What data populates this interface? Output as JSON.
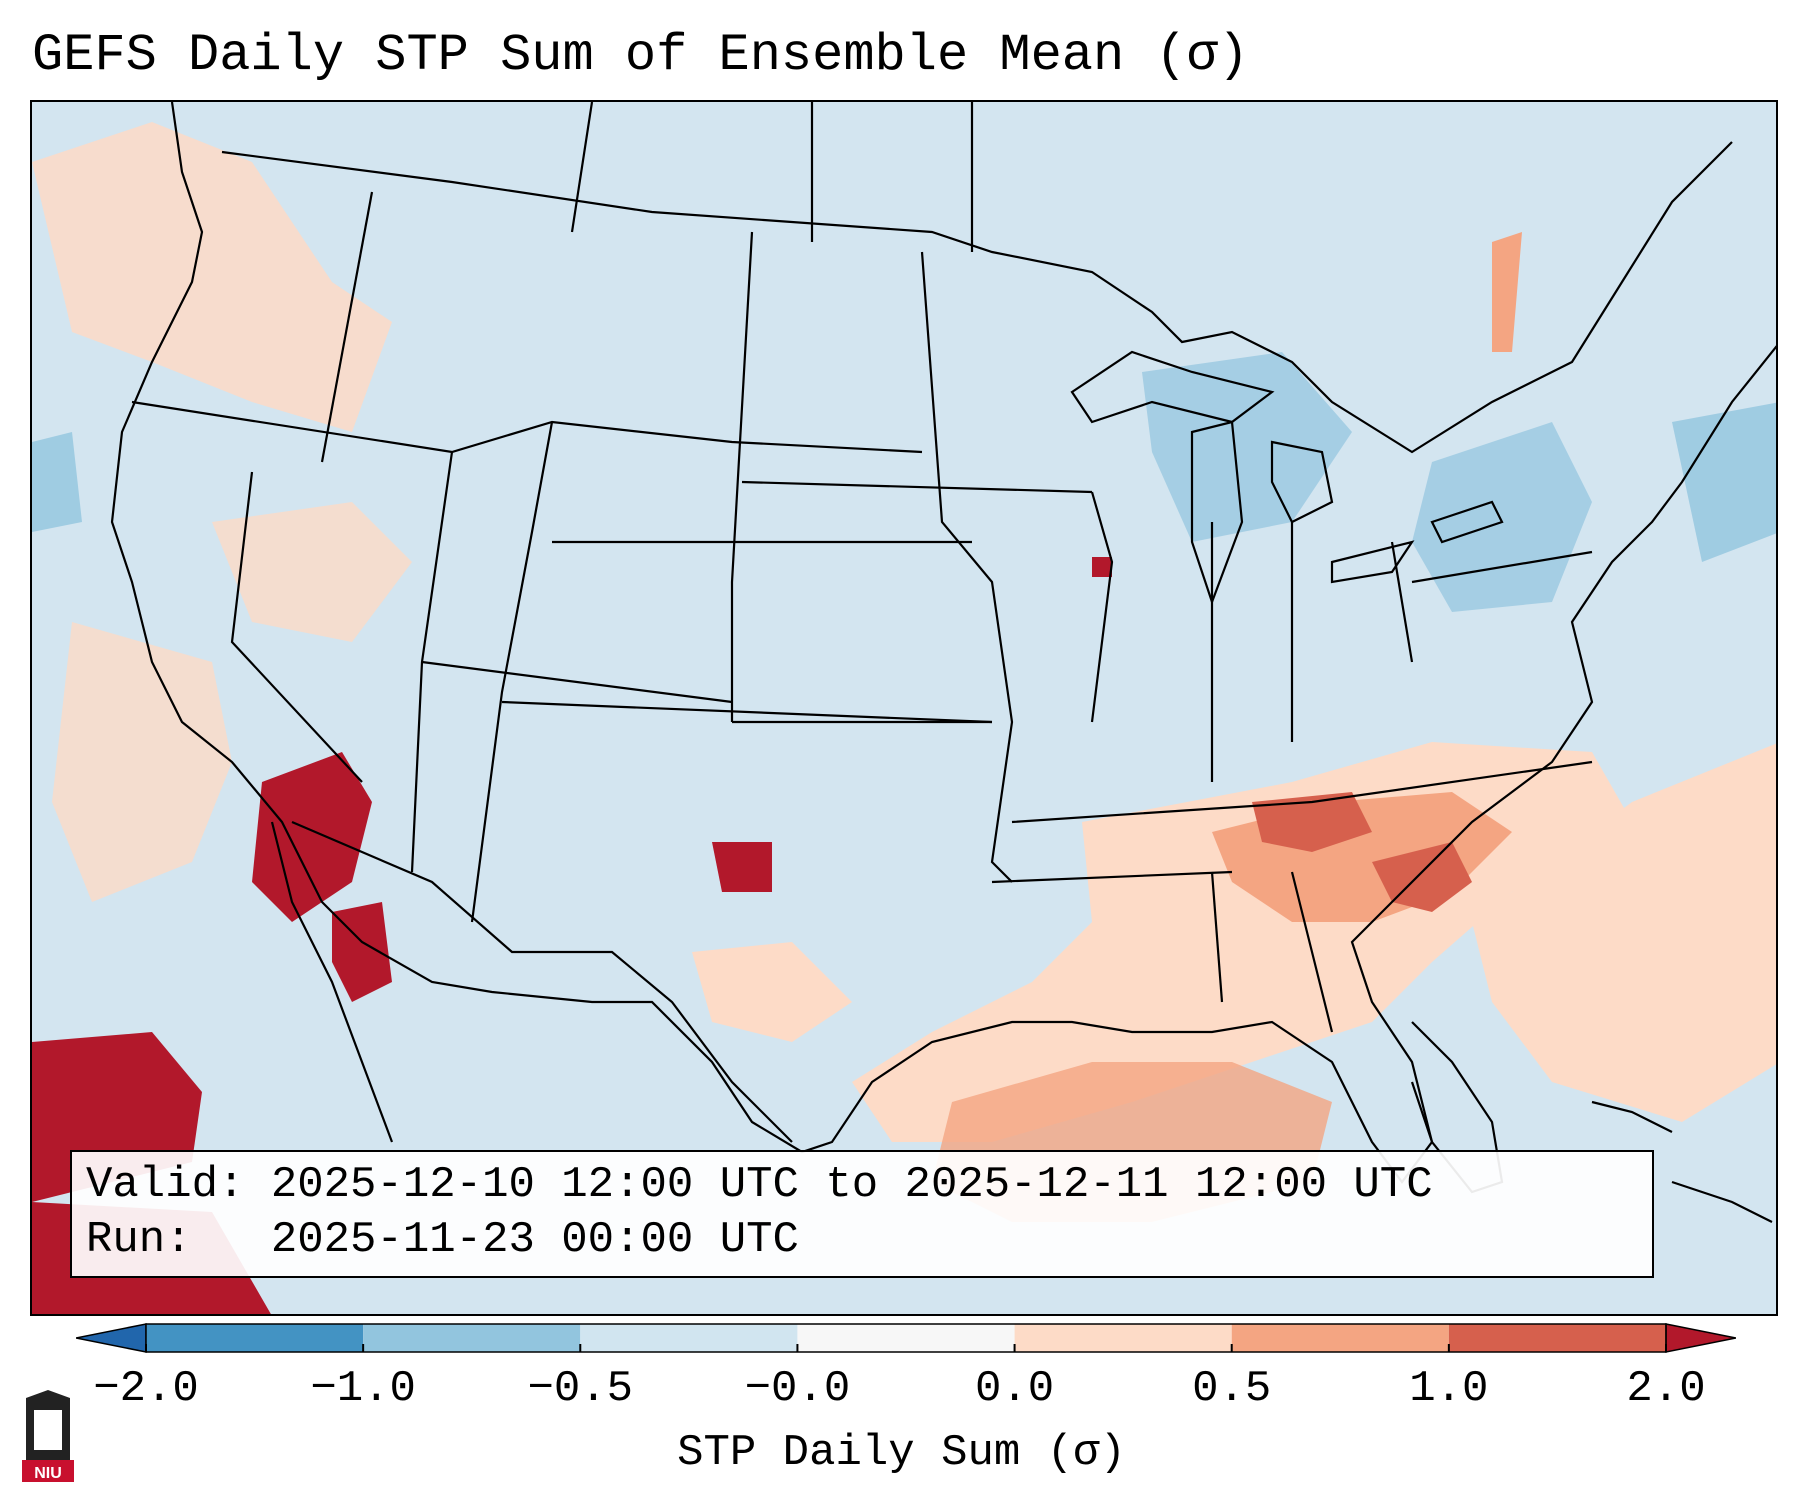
{
  "title": "GEFS Daily STP Sum of Ensemble Mean (σ)",
  "info": {
    "valid_line": "Valid: 2025-12-10 12:00 UTC to 2025-12-11 12:00 UTC",
    "run_line": "Run:   2025-11-23 00:00 UTC"
  },
  "colorbar": {
    "label": "STP Daily Sum (σ)",
    "ticks": [
      "−2.0",
      "−1.0",
      "−0.5",
      "−0.0",
      "0.0",
      "0.5",
      "1.0",
      "2.0"
    ],
    "bin_colors": [
      "#4393c3",
      "#92c5de",
      "#d1e5f0",
      "#f7f7f7",
      "#fddbc7",
      "#f4a582",
      "#d6604d"
    ],
    "under_color": "#2166ac",
    "over_color": "#b2182b"
  },
  "map": {
    "background_color": "#d3e5f0",
    "region": "Contiguous United States",
    "logo_text": "NIU"
  }
}
